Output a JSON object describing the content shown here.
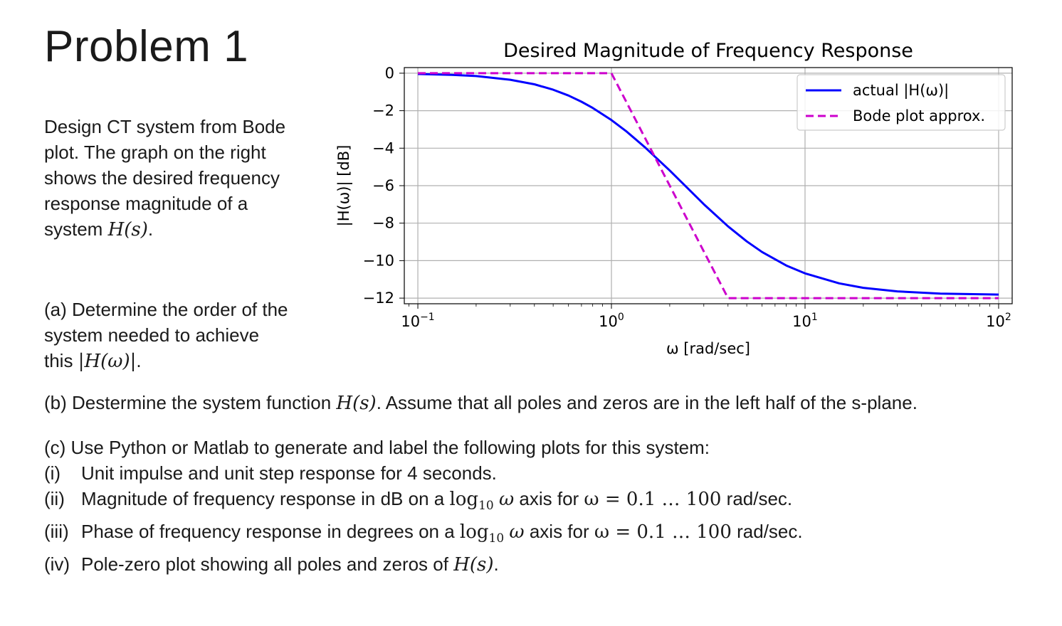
{
  "page": {
    "title": "Problem 1",
    "intro_text": "Design CT system from Bode plot. The graph on the right shows the desired frequency response magnitude of a system ",
    "intro_math": "H(s)",
    "intro_end": ".",
    "part_a_text": "(a) Determine the order of the system needed to achieve this ",
    "part_a_math": "|H(ω)|",
    "part_a_end": ".",
    "part_b_text": "(b) Destermine the system function ",
    "part_b_math": "H(s)",
    "part_b_end": ". Assume that all poles and zeros are in the left half of the s-plane.",
    "part_c_header": "(c) Use Python or Matlab to generate and label the following plots for this system:",
    "items": [
      {
        "num": "(i)",
        "text": "Unit impulse and unit step response for 4 seconds."
      },
      {
        "num": "(ii)",
        "pre": "Magnitude of frequency response in dB on a ",
        "log": "log",
        "sub": "10",
        "omega": "ω",
        "mid": " axis for ",
        "eq": "ω = 0.1 … 100",
        "post": " rad/sec."
      },
      {
        "num": "(iii)",
        "pre": "Phase of frequency response in degrees on a ",
        "log": "log",
        "sub": "10",
        "omega": "ω",
        "mid": " axis for ",
        "eq": "ω = 0.1 … 100",
        "post": " rad/sec."
      },
      {
        "num": "(iv)",
        "pre": "Pole-zero plot showing all poles and zeros of ",
        "math": "H(s)",
        "post": "."
      }
    ]
  },
  "chart_data": {
    "type": "line",
    "title": "Desired Magnitude of Frequency Response",
    "xlabel": "ω [rad/sec]",
    "ylabel": "|H(ω)| [dB]",
    "xscale": "log",
    "xlim": [
      0.1,
      100
    ],
    "ylim": [
      -12.3,
      0.3
    ],
    "grid": true,
    "legend_position": "top-right",
    "x_ticks": [
      0.1,
      1,
      10,
      100
    ],
    "x_tick_labels": [
      {
        "base": "10",
        "exp": "−1"
      },
      {
        "base": "10",
        "exp": "0"
      },
      {
        "base": "10",
        "exp": "1"
      },
      {
        "base": "10",
        "exp": "2"
      }
    ],
    "y_ticks": [
      0,
      -2,
      -4,
      -6,
      -8,
      -10,
      -12
    ],
    "y_tick_labels": [
      "0",
      "−2",
      "−4",
      "−6",
      "−8",
      "−10",
      "−12"
    ],
    "series": [
      {
        "name": "actual |H(ω)|",
        "color": "#0000ff",
        "style": "solid",
        "x": [
          0.1,
          0.15,
          0.2,
          0.3,
          0.4,
          0.5,
          0.6,
          0.7,
          0.8,
          1.0,
          1.2,
          1.5,
          2.0,
          2.5,
          3.0,
          4.0,
          5.0,
          6.0,
          8.0,
          10.0,
          15.0,
          20.0,
          30.0,
          50.0,
          100.0
        ],
        "y": [
          -0.04,
          -0.09,
          -0.15,
          -0.35,
          -0.59,
          -0.88,
          -1.19,
          -1.52,
          -1.85,
          -2.5,
          -3.12,
          -3.98,
          -5.19,
          -6.18,
          -6.99,
          -8.17,
          -8.97,
          -9.54,
          -10.26,
          -10.68,
          -11.21,
          -11.45,
          -11.64,
          -11.76,
          -11.81
        ]
      },
      {
        "name": "Bode plot approx.",
        "color": "#cc00cc",
        "style": "dashed",
        "x": [
          0.1,
          1.0,
          4.0,
          100.0
        ],
        "y": [
          0,
          0,
          -12,
          -12
        ]
      }
    ]
  }
}
